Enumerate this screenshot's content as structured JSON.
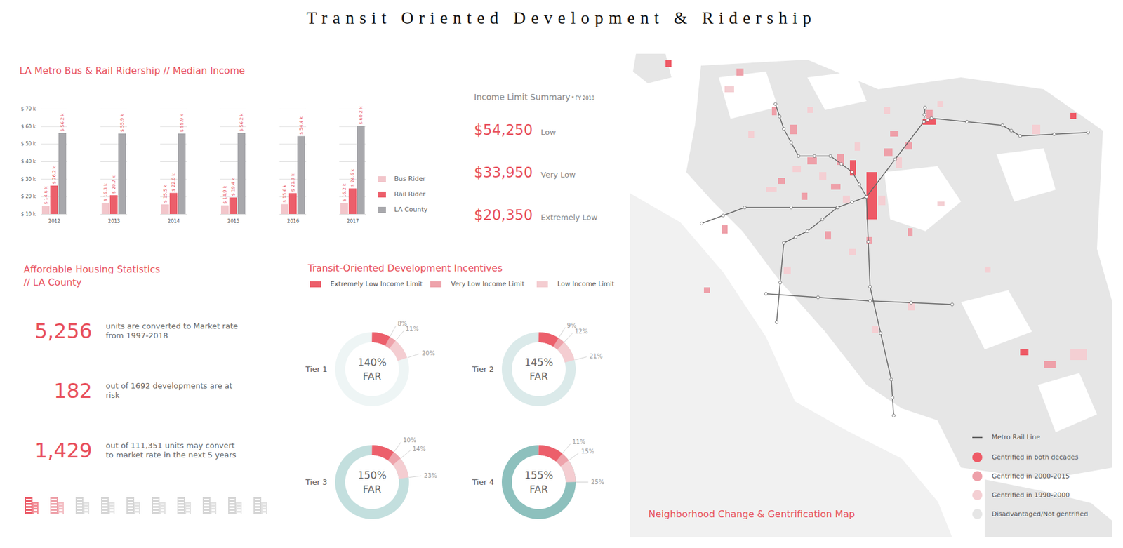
{
  "title": "Transit Oriented Development & Ridership",
  "chart_data": [
    {
      "type": "bar",
      "title": "LA Metro Bus & Rail Ridership // Median Income",
      "categories": [
        "2012",
        "2013",
        "2014",
        "2015",
        "2016",
        "2017"
      ],
      "series": [
        {
          "name": "Bus Rider",
          "color": "#f2c6cb",
          "values": [
            14.6,
            16.3,
            15.5,
            14.9,
            15.6,
            16.2
          ],
          "value_labels": [
            "$ 14.6 k",
            "$ 16.3 k",
            "$ 15.5 k",
            "$ 14.9 k",
            "$ 15.6 k",
            "$ 16.2 k"
          ]
        },
        {
          "name": "Rail Rider",
          "color": "#ec5f6b",
          "values": [
            26.2,
            20.7,
            22.0,
            19.4,
            21.9,
            24.6
          ],
          "value_labels": [
            "$ 26.2 k",
            "$ 20.7 k",
            "$ 22.0 k",
            "$ 19.4 k",
            "$ 21.9 k",
            "$ 24.6 k"
          ]
        },
        {
          "name": "LA County",
          "color": "#a8a8ac",
          "values": [
            56.2,
            55.9,
            55.9,
            56.2,
            54.4,
            60.2
          ],
          "value_labels": [
            "$ 56.2 k",
            "$ 55.9 k",
            "$ 55.9 k",
            "$ 56.2 k",
            "$ 54.4 k",
            "$ 60.2 k"
          ]
        }
      ],
      "ylim": [
        10,
        70
      ],
      "yticks": [
        {
          "value": 10,
          "label": "$ 10 k"
        },
        {
          "value": 20,
          "label": "$ 20 k"
        },
        {
          "value": 30,
          "label": "$ 30 k"
        },
        {
          "value": 40,
          "label": "$ 40 k"
        },
        {
          "value": 50,
          "label": "$ 50 k"
        },
        {
          "value": 60,
          "label": "$ 60 k"
        },
        {
          "value": 70,
          "label": "$ 70 k"
        }
      ],
      "grid": true,
      "data_labels": true
    },
    {
      "type": "donut",
      "title": "Tier 1",
      "categories": [
        "Extremely Low Income Limit",
        "Very Low Income Limit",
        "Low Income Limit"
      ],
      "values": [
        8,
        11,
        20
      ],
      "value_labels": [
        "8%",
        "11%",
        "20%"
      ],
      "colors": [
        "#ec5f6b",
        "#eea3ab",
        "#f4cdd1"
      ],
      "color": "#eef5f5",
      "center_label": "140%",
      "center_sublabel": "FAR",
      "data_labels": true
    },
    {
      "type": "donut",
      "title": "Tier 2",
      "categories": [
        "Extremely Low Income Limit",
        "Very Low Income Limit",
        "Low Income Limit"
      ],
      "values": [
        9,
        12,
        21
      ],
      "value_labels": [
        "9%",
        "12%",
        "21%"
      ],
      "colors": [
        "#ec5f6b",
        "#eea3ab",
        "#f4cdd1"
      ],
      "color": "#dbeaea",
      "center_label": "145%",
      "center_sublabel": "FAR",
      "data_labels": true
    },
    {
      "type": "donut",
      "title": "Tier 3",
      "categories": [
        "Extremely Low Income Limit",
        "Very Low Income Limit",
        "Low Income Limit"
      ],
      "values": [
        10,
        14,
        23
      ],
      "value_labels": [
        "10%",
        "14%",
        "23%"
      ],
      "colors": [
        "#ec5f6b",
        "#eea3ab",
        "#f4cdd1"
      ],
      "color": "#c3dfde",
      "center_label": "150%",
      "center_sublabel": "FAR",
      "data_labels": true
    },
    {
      "type": "donut",
      "title": "Tier 4",
      "categories": [
        "Extremely Low Income Limit",
        "Very Low Income Limit",
        "Low Income Limit"
      ],
      "values": [
        11,
        15,
        25
      ],
      "value_labels": [
        "11%",
        "15%",
        "25%"
      ],
      "colors": [
        "#ec5f6b",
        "#eea3ab",
        "#f4cdd1"
      ],
      "color": "#8dc0bd",
      "center_label": "155%",
      "center_sublabel": "FAR",
      "data_labels": true
    }
  ],
  "income_limits": {
    "title": "Income Limit Summary",
    "note": "* FY 2018",
    "items": [
      {
        "value": "$54,250",
        "label": "Low"
      },
      {
        "value": "$33,950",
        "label": "Very Low"
      },
      {
        "value": "$20,350",
        "label": "Extremely Low"
      }
    ]
  },
  "housing_stats": {
    "title": [
      "Affordable Housing Statistics",
      "// LA County"
    ],
    "items": [
      {
        "value": "5,256",
        "text": "units are converted to Market rate from 1997-2018"
      },
      {
        "value": "182",
        "text": "out of 1692 developments are at risk"
      },
      {
        "value": "1,429",
        "text": "out of 111,351 units may convert to market rate in the next 5 years"
      }
    ]
  },
  "incentives": {
    "title": "Transit-Oriented Development Incentives"
  },
  "map": {
    "title": "Neighborhood Change & Gentrification Map",
    "legend": [
      {
        "label": "Metro Rail Line",
        "color": "#666666",
        "marker": "line"
      },
      {
        "label": "Gentrified in both decades",
        "color": "#ee5a66",
        "marker": "circle"
      },
      {
        "label": "Gentrified in 2000-2015",
        "color": "#eea0a9",
        "marker": "circle"
      },
      {
        "label": "Gentrified in 1990-2000",
        "color": "#f4cfd3",
        "marker": "circle"
      },
      {
        "label": "Disadvantaged/Not gentrified",
        "color": "#e6e6e6",
        "marker": "circle"
      }
    ]
  }
}
